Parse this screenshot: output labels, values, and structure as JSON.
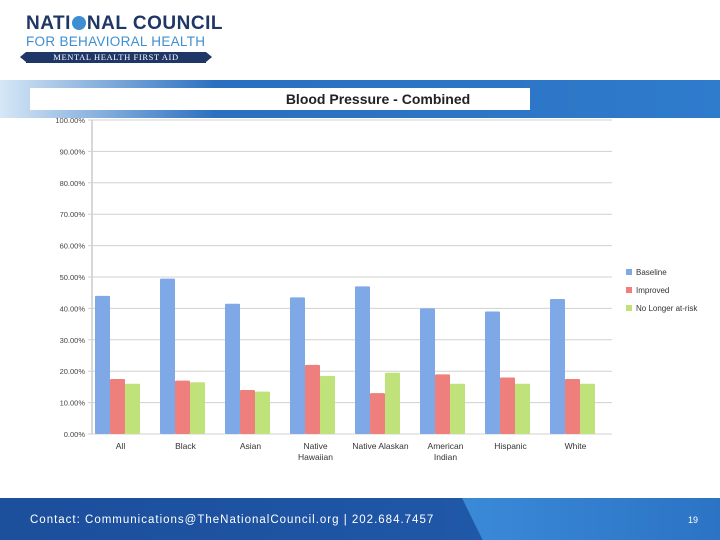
{
  "branding": {
    "org_line1": "NATI",
    "org_line1b": "NAL COUNCIL",
    "org_line2": "FOR BEHAVIORAL HEALTH",
    "program": "MENTAL HEALTH FIRST AID"
  },
  "footer": {
    "contact": "Contact: Communications@TheNationalCouncil.org  |  202.684.7457",
    "page_number": "19"
  },
  "colors": {
    "baseline": "#7fa9e6",
    "improved": "#ef7f7c",
    "no_longer": "#bfe37a",
    "grid": "#d0d0d0"
  },
  "chart_data": {
    "type": "bar",
    "title": "Blood Pressure - Combined",
    "categories": [
      [
        "All"
      ],
      [
        "Black"
      ],
      [
        "Asian"
      ],
      [
        "Native",
        "Hawaiian"
      ],
      [
        "Native Alaskan"
      ],
      [
        "American",
        "Indian"
      ],
      [
        "Hispanic"
      ],
      [
        "White"
      ]
    ],
    "series": [
      {
        "name": "Baseline",
        "values": [
          44.0,
          49.5,
          41.5,
          43.5,
          47.0,
          40.0,
          39.0,
          43.0
        ]
      },
      {
        "name": "Improved",
        "values": [
          17.5,
          17.0,
          14.0,
          22.0,
          13.0,
          19.0,
          18.0,
          17.5
        ]
      },
      {
        "name": "No Longer at-risk",
        "values": [
          16.0,
          16.5,
          13.5,
          18.5,
          19.5,
          16.0,
          16.0,
          16.0
        ]
      }
    ],
    "ylim": [
      0,
      100
    ],
    "yticks": [
      "0.00%",
      "10.00%",
      "20.00%",
      "30.00%",
      "40.00%",
      "50.00%",
      "60.00%",
      "70.00%",
      "80.00%",
      "90.00%",
      "100.00%"
    ],
    "legend_position": "right",
    "grid": true
  }
}
